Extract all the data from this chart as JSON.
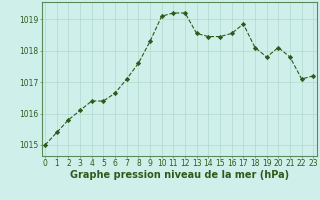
{
  "x": [
    0,
    1,
    2,
    3,
    4,
    5,
    6,
    7,
    8,
    9,
    10,
    11,
    12,
    13,
    14,
    15,
    16,
    17,
    18,
    19,
    20,
    21,
    22,
    23
  ],
  "y": [
    1015.0,
    1015.4,
    1015.8,
    1016.1,
    1016.4,
    1016.4,
    1016.65,
    1017.1,
    1017.6,
    1018.3,
    1019.1,
    1019.2,
    1019.2,
    1018.55,
    1018.45,
    1018.45,
    1018.55,
    1018.85,
    1018.1,
    1017.8,
    1018.1,
    1017.8,
    1017.1,
    1017.2
  ],
  "line_color": "#2d5a1b",
  "marker_color": "#2d5a1b",
  "bg_color": "#cff0ea",
  "grid_color": "#b0d8d0",
  "xlabel": "Graphe pression niveau de la mer (hPa)",
  "xlabel_fontsize": 7,
  "yticks": [
    1015,
    1016,
    1017,
    1018,
    1019
  ],
  "xticks": [
    0,
    1,
    2,
    3,
    4,
    5,
    6,
    7,
    8,
    9,
    10,
    11,
    12,
    13,
    14,
    15,
    16,
    17,
    18,
    19,
    20,
    21,
    22,
    23
  ],
  "ylim": [
    1014.65,
    1019.55
  ],
  "xlim": [
    -0.3,
    23.3
  ],
  "tick_fontsize": 5.5,
  "border_color": "#2d5a1b",
  "spine_color": "#5a8a5a"
}
